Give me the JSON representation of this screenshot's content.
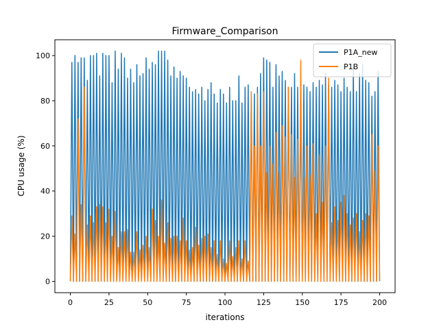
{
  "chart_data": {
    "type": "line",
    "title": "Firmware_Comparison",
    "xlabel": "iterations",
    "ylabel": "CPU usage (%)",
    "xlim": [
      -10,
      210
    ],
    "ylim": [
      -5,
      107
    ],
    "xticks": [
      0,
      25,
      50,
      75,
      100,
      125,
      150,
      175,
      200
    ],
    "yticks": [
      0,
      20,
      40,
      60,
      80,
      100
    ],
    "grid": false,
    "legend": "top-right",
    "series": [
      {
        "name": "P1A_new",
        "color": "#1f77b4",
        "peaks": [
          97,
          100,
          97,
          99,
          99,
          89,
          100,
          100,
          101,
          91,
          101,
          100,
          100,
          88,
          102,
          94,
          101,
          99,
          90,
          94,
          88,
          96,
          91,
          92,
          99,
          94,
          97,
          96,
          102,
          102,
          102,
          98,
          91,
          95,
          90,
          93,
          91,
          90,
          86,
          84,
          85,
          83,
          86,
          80,
          85,
          88,
          83,
          79,
          85,
          83,
          79,
          86,
          80,
          80,
          91,
          79,
          86,
          87,
          80,
          83,
          86,
          92,
          99,
          98,
          97,
          86,
          96,
          91,
          93,
          89,
          86,
          86,
          92,
          86,
          83,
          87,
          86,
          84,
          88,
          86,
          89,
          87,
          92,
          87,
          86,
          89,
          87,
          84,
          90,
          86,
          84,
          95,
          84,
          92,
          96,
          89,
          88,
          82,
          84,
          93
        ]
      },
      {
        "name": "P1B",
        "color": "#ff7f0e",
        "peaks": [
          29,
          21,
          72,
          34,
          86,
          25,
          29,
          26,
          33,
          34,
          33,
          26,
          32,
          20,
          31,
          15,
          22,
          22,
          23,
          13,
          13,
          22,
          14,
          16,
          20,
          15,
          32,
          27,
          20,
          36,
          17,
          26,
          19,
          20,
          20,
          18,
          28,
          18,
          14,
          15,
          24,
          16,
          19,
          20,
          21,
          15,
          18,
          12,
          18,
          10,
          8,
          18,
          11,
          15,
          18,
          10,
          18,
          9,
          84,
          60,
          83,
          60,
          84,
          48,
          60,
          52,
          66,
          48,
          69,
          64,
          86,
          65,
          46,
          63,
          98,
          46,
          60,
          47,
          61,
          30,
          56,
          35,
          60,
          90,
          26,
          33,
          27,
          35,
          38,
          30,
          25,
          28,
          30,
          22,
          27,
          30,
          29,
          65,
          49,
          60
        ]
      }
    ]
  }
}
